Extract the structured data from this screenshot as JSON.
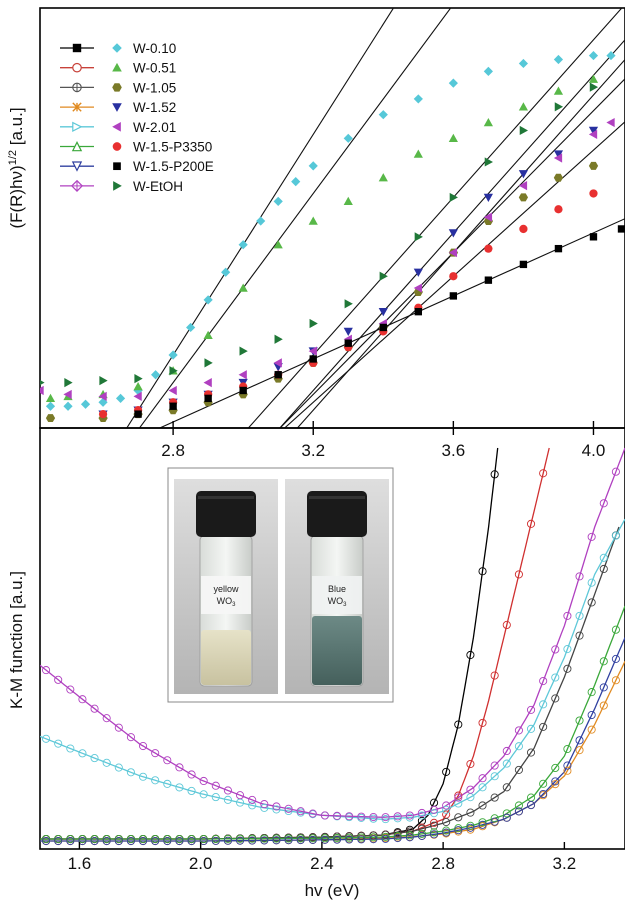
{
  "chart_data": [
    {
      "type": "scatter",
      "title": "",
      "xlabel": "",
      "ylabel": "(F(R)hν)^1/2 [a.u.]",
      "ylabel_main": "(F(R)hν)",
      "ylabel_sup": "1/2",
      "ylabel_unit": " [a.u.]",
      "xlim": [
        2.42,
        4.09
      ],
      "ylim": [
        0,
        100
      ],
      "x_ticks": [
        "2.8",
        "3.2",
        "3.6",
        "4.0"
      ],
      "x_tick_values": [
        2.8,
        3.2,
        3.6,
        4.0
      ],
      "x_axis_position": "top of lower panel (shared)",
      "legend_position": "top-left",
      "grid": false,
      "legend_col1": [
        {
          "name": "W-0.10",
          "color": "#000000",
          "marker": "square-filled"
        },
        {
          "name": "W-0.51",
          "color": "#c8423a",
          "marker": "circle-open"
        },
        {
          "name": "W-1.05",
          "color": "#555555",
          "marker": "circle-crossed"
        },
        {
          "name": "W-1.52",
          "color": "#e08a20",
          "marker": "star"
        },
        {
          "name": "W-2.01",
          "color": "#5ec8d8",
          "marker": "triangle-right-open"
        },
        {
          "name": "W-1.5-P3350",
          "color": "#3aa83a",
          "marker": "triangle-up-open"
        },
        {
          "name": "W-1.5-P200E",
          "color": "#3040a0",
          "marker": "triangle-down-open"
        },
        {
          "name": "W-EtOH",
          "color": "#b040c0",
          "marker": "diamond-crossed"
        }
      ],
      "series": [
        {
          "name": "W-0.10",
          "color": "#56c8d8",
          "marker": "diamond",
          "x": [
            2.45,
            2.5,
            2.55,
            2.6,
            2.65,
            2.7,
            2.75,
            2.8,
            2.85,
            2.9,
            2.95,
            3.0,
            3.05,
            3.1,
            3.15,
            3.2,
            3.3,
            3.4,
            3.5,
            3.6,
            3.7,
            3.8,
            3.9,
            4.0,
            4.05
          ],
          "y": [
            4,
            4,
            4.5,
            5,
            6,
            8,
            12,
            17,
            24,
            31,
            38,
            45,
            51,
            56,
            61,
            65,
            72,
            78,
            82,
            86,
            89,
            91,
            92,
            93,
            93
          ]
        },
        {
          "name": "W-0.51",
          "color": "#58b848",
          "marker": "triangle-up",
          "x": [
            2.45,
            2.5,
            2.6,
            2.7,
            2.8,
            2.9,
            3.0,
            3.1,
            3.2,
            3.3,
            3.4,
            3.5,
            3.6,
            3.7,
            3.8,
            3.9,
            4.0
          ],
          "y": [
            6,
            6.5,
            7,
            9,
            13,
            22,
            34,
            45,
            51,
            56,
            62,
            68,
            72,
            76,
            80,
            84,
            87
          ]
        },
        {
          "name": "W-1.05",
          "color": "#7a7a28",
          "marker": "hexagon",
          "x": [
            2.45,
            2.6,
            2.7,
            2.8,
            2.9,
            3.0,
            3.1,
            3.2,
            3.3,
            3.4,
            3.5,
            3.6,
            3.7,
            3.8,
            3.9,
            4.0
          ],
          "y": [
            1,
            1,
            2,
            3,
            5,
            7,
            11,
            15,
            19,
            24,
            33,
            43,
            51,
            57,
            62,
            65
          ]
        },
        {
          "name": "W-1.52",
          "color": "#2830a0",
          "marker": "triangle-down",
          "x": [
            2.6,
            2.7,
            2.8,
            2.9,
            3.0,
            3.1,
            3.2,
            3.3,
            3.4,
            3.5,
            3.6,
            3.7,
            3.8,
            3.9,
            4.0
          ],
          "y": [
            2,
            3,
            5,
            7,
            10,
            14,
            18,
            23,
            28,
            38,
            48,
            57,
            63,
            68,
            74
          ]
        },
        {
          "name": "W-2.01",
          "color": "#b040c0",
          "marker": "triangle-left",
          "x": [
            2.42,
            2.5,
            2.6,
            2.7,
            2.8,
            2.9,
            3.0,
            3.1,
            3.2,
            3.3,
            3.4,
            3.5,
            3.6,
            3.7,
            3.8,
            3.9,
            4.0,
            4.05
          ],
          "y": [
            8,
            7,
            6.5,
            6.5,
            8,
            10,
            12,
            15,
            18,
            21,
            25,
            34,
            43,
            52,
            60,
            67,
            73,
            76
          ]
        },
        {
          "name": "W-1.5-P3350",
          "color": "#e83030",
          "marker": "circle",
          "x": [
            2.6,
            2.7,
            2.8,
            2.9,
            3.0,
            3.1,
            3.2,
            3.3,
            3.4,
            3.5,
            3.6,
            3.7,
            3.8,
            3.9,
            4.0
          ],
          "y": [
            2,
            3,
            5,
            7,
            9,
            12,
            15,
            19,
            23,
            29,
            37,
            44,
            49,
            54,
            58
          ]
        },
        {
          "name": "W-1.5-P200E",
          "color": "#000000",
          "marker": "square",
          "x": [
            2.7,
            2.8,
            2.9,
            3.0,
            3.1,
            3.2,
            3.3,
            3.4,
            3.5,
            3.6,
            3.7,
            3.8,
            3.9,
            4.0,
            4.08
          ],
          "y": [
            2,
            4,
            6,
            8,
            12,
            16,
            20,
            24,
            28,
            32,
            36,
            40,
            44,
            47,
            49
          ]
        },
        {
          "name": "W-EtOH",
          "color": "#207838",
          "marker": "triangle-right",
          "x": [
            2.42,
            2.5,
            2.6,
            2.7,
            2.8,
            2.9,
            3.0,
            3.1,
            3.2,
            3.3,
            3.4,
            3.5,
            3.6,
            3.7,
            3.8,
            3.9,
            4.0
          ],
          "y": [
            10,
            10,
            10.5,
            11,
            13,
            15,
            18,
            21,
            25,
            30,
            37,
            47,
            57,
            66,
            74,
            80,
            85
          ]
        }
      ]
    },
    {
      "type": "line",
      "title": "",
      "xlabel": "hv (eV)",
      "ylabel": "K-M function [a.u.]",
      "xlim": [
        1.47,
        3.4
      ],
      "ylim": [
        0,
        100
      ],
      "x_ticks": [
        "1.6",
        "2.0",
        "2.4",
        "2.8",
        "3.2"
      ],
      "x_tick_values": [
        1.6,
        2.0,
        2.4,
        2.8,
        3.2
      ],
      "grid": false,
      "inset": {
        "type": "photo",
        "left_label_line1": "yellow",
        "left_label_line2": "WO",
        "left_label_sub": "3",
        "right_label_line1": "Blue",
        "right_label_line2": "WO",
        "right_label_sub": "3"
      },
      "series": [
        {
          "name": "W-0.10",
          "color": "#000000",
          "x": [
            1.47,
            2.0,
            2.4,
            2.6,
            2.7,
            2.75,
            2.8,
            2.85,
            2.9,
            2.95,
            2.98
          ],
          "y": [
            1,
            1,
            1.5,
            2,
            3.5,
            7,
            15,
            30,
            52,
            80,
            100
          ]
        },
        {
          "name": "W-0.51",
          "color": "#d03030",
          "x": [
            1.47,
            2.0,
            2.4,
            2.6,
            2.7,
            2.8,
            2.85,
            2.9,
            2.95,
            3.0,
            3.05,
            3.1,
            3.15
          ],
          "y": [
            1,
            1,
            1.5,
            2,
            3,
            6,
            12,
            22,
            36,
            52,
            68,
            84,
            100
          ]
        },
        {
          "name": "W-1.05",
          "color": "#444444",
          "x": [
            1.47,
            2.0,
            2.4,
            2.6,
            2.7,
            2.8,
            2.9,
            3.0,
            3.1,
            3.2,
            3.3,
            3.38
          ],
          "y": [
            1,
            1,
            1.5,
            2,
            3,
            5,
            8,
            13,
            24,
            42,
            63,
            80
          ]
        },
        {
          "name": "W-1.52",
          "color": "#e08a20",
          "x": [
            1.47,
            2.0,
            2.4,
            2.6,
            2.7,
            2.8,
            2.9,
            3.0,
            3.1,
            3.2,
            3.3,
            3.4
          ],
          "y": [
            0.5,
            0.5,
            0.8,
            1.2,
            1.6,
            2.3,
            3.5,
            6,
            10,
            17,
            30,
            46
          ]
        },
        {
          "name": "W-2.01",
          "color": "#5ec8d8",
          "x": [
            1.47,
            1.6,
            1.8,
            2.0,
            2.2,
            2.4,
            2.6,
            2.7,
            2.8,
            2.9,
            3.0,
            3.1,
            3.2,
            3.3,
            3.4
          ],
          "y": [
            27,
            23,
            17,
            12.5,
            9,
            7,
            6,
            6.5,
            8,
            12,
            19,
            30,
            47,
            68,
            82
          ]
        },
        {
          "name": "W-1.5-P3350",
          "color": "#3aa83a",
          "x": [
            1.47,
            2.0,
            2.4,
            2.6,
            2.7,
            2.8,
            2.9,
            3.0,
            3.1,
            3.2,
            3.3,
            3.4
          ],
          "y": [
            1,
            1,
            1.2,
            1.5,
            2,
            3,
            4.5,
            7,
            12,
            22,
            40,
            60
          ]
        },
        {
          "name": "W-1.5-P200E",
          "color": "#3040a0",
          "x": [
            1.47,
            2.0,
            2.4,
            2.6,
            2.7,
            2.8,
            2.9,
            3.0,
            3.1,
            3.2,
            3.3,
            3.4
          ],
          "y": [
            0.5,
            0.5,
            0.8,
            1,
            1.5,
            2.5,
            4,
            6,
            10,
            18,
            34,
            52
          ]
        },
        {
          "name": "W-EtOH",
          "color": "#b040c0",
          "x": [
            1.47,
            1.6,
            1.8,
            2.0,
            2.2,
            2.4,
            2.6,
            2.7,
            2.8,
            2.9,
            3.0,
            3.1,
            3.2,
            3.3,
            3.4
          ],
          "y": [
            45,
            37,
            25,
            16,
            10,
            7,
            6.5,
            7,
            9,
            14,
            22,
            35,
            55,
            80,
            100
          ]
        }
      ]
    }
  ]
}
